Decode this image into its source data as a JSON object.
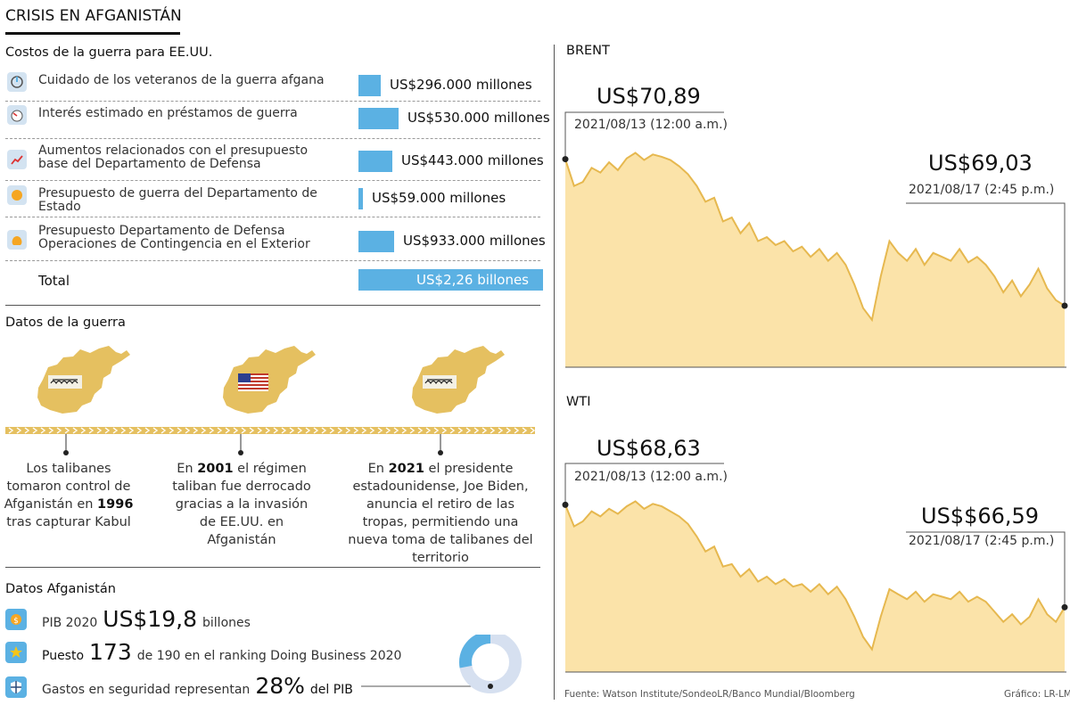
{
  "title": "CRISIS EN AFGANISTÁN",
  "costs": {
    "heading": "Costos de la guerra para EE.UU.",
    "items": [
      {
        "label": "Cuidado de los veteranos de la guerra afgana",
        "value": "US$296.000 millones",
        "amount": 296000,
        "icon": "veterans-icon"
      },
      {
        "label": "Interés estimado en préstamos de guerra",
        "value": "US$530.000 millones",
        "amount": 530000,
        "icon": "gauge-icon"
      },
      {
        "label": "Aumentos relacionados con el presupuesto base del Departamento de Defensa",
        "value": "US$443.000 millones",
        "amount": 443000,
        "icon": "trend-up-icon"
      },
      {
        "label": "Presupuesto de guerra del Departamento de Estado",
        "value": "US$59.000 millones",
        "amount": 59000,
        "icon": "coin-icon"
      },
      {
        "label": "Presupuesto Departamento de Defensa Operaciones de Contingencia en el Exterior",
        "value": "US$933.000 millones",
        "amount": 933000,
        "icon": "money-bag-icon"
      }
    ],
    "total_label": "Total",
    "total_value": "US$2,26 billones"
  },
  "war": {
    "heading": "Datos de la guerra",
    "events": [
      {
        "pre": "Los talibanes tomaron control de Afganistán en ",
        "year": "1996",
        "post": " tras capturar Kabul",
        "emblem": "taliban-flag-icon"
      },
      {
        "pre": "En ",
        "year": "2001",
        "post": " el régimen taliban fue derrocado gracias a la invasión de EE.UU. en Afganistán",
        "emblem": "us-flag-icon"
      },
      {
        "pre": "En ",
        "year": "2021",
        "post": " el presidente estadounidense, Joe Biden, anuncia el retiro de las tropas, permitiendo una nueva toma de talibanes del territorio",
        "emblem": "taliban-flag-icon"
      }
    ]
  },
  "afg": {
    "heading": "Datos Afganistán",
    "gdp_prefix": "PIB 2020",
    "gdp_value": "US$19,8",
    "gdp_suffix": "billones",
    "rank_prefix": "Puesto",
    "rank_value": "173",
    "rank_suffix": "de 190 en el ranking Doing Business 2020",
    "security_prefix": "Gastos en seguridad representan",
    "security_value": "28%",
    "security_suffix": "del PIB",
    "security_share": 0.28
  },
  "colors": {
    "accent_blue": "#5bb1e3",
    "map_gold": "#e5c060",
    "chart_fill": "#fbe3a9",
    "chart_line": "#e6b84f",
    "donut_rest": "#d6e0f0"
  },
  "chart_data": [
    {
      "type": "area",
      "title": "BRENT",
      "start": {
        "price": "US$70,89",
        "date": "2021/08/13 (12:00 a.m.)"
      },
      "end": {
        "price": "US$69,03",
        "date": "2021/08/17 (2:45 p.m.)"
      },
      "values": [
        70.89,
        70.55,
        70.6,
        70.78,
        70.72,
        70.85,
        70.75,
        70.9,
        70.97,
        70.88,
        70.95,
        70.92,
        70.88,
        70.8,
        70.7,
        70.55,
        70.35,
        70.4,
        70.1,
        70.15,
        69.95,
        70.08,
        69.85,
        69.9,
        69.8,
        69.85,
        69.72,
        69.78,
        69.65,
        69.75,
        69.6,
        69.7,
        69.55,
        69.3,
        69.0,
        68.85,
        69.4,
        69.85,
        69.7,
        69.6,
        69.75,
        69.55,
        69.7,
        69.65,
        69.6,
        69.75,
        69.58,
        69.65,
        69.55,
        69.4,
        69.2,
        69.35,
        69.15,
        69.3,
        69.5,
        69.25,
        69.1,
        69.03
      ]
    },
    {
      "type": "area",
      "title": "WTI",
      "start": {
        "price": "US$68,63",
        "date": "2021/08/13 (12:00 a.m.)"
      },
      "end": {
        "price": "US$$66,59",
        "date": "2021/08/17 (2:45 p.m.)"
      },
      "values": [
        68.63,
        68.2,
        68.3,
        68.5,
        68.4,
        68.55,
        68.45,
        68.6,
        68.7,
        68.55,
        68.65,
        68.6,
        68.5,
        68.4,
        68.25,
        68.0,
        67.7,
        67.8,
        67.4,
        67.45,
        67.2,
        67.35,
        67.1,
        67.2,
        67.05,
        67.15,
        67.0,
        67.05,
        66.9,
        67.05,
        66.85,
        67.0,
        66.75,
        66.4,
        66.0,
        65.75,
        66.4,
        66.95,
        66.85,
        66.75,
        66.9,
        66.7,
        66.85,
        66.8,
        66.75,
        66.9,
        66.7,
        66.8,
        66.7,
        66.5,
        66.3,
        66.45,
        66.25,
        66.4,
        66.75,
        66.45,
        66.3,
        66.59
      ]
    }
  ],
  "footer": {
    "source": "Fuente: Watson Institute/SondeoLR/Banco Mundial/Bloomberg",
    "credit": "Gráfico: LR-LM"
  }
}
